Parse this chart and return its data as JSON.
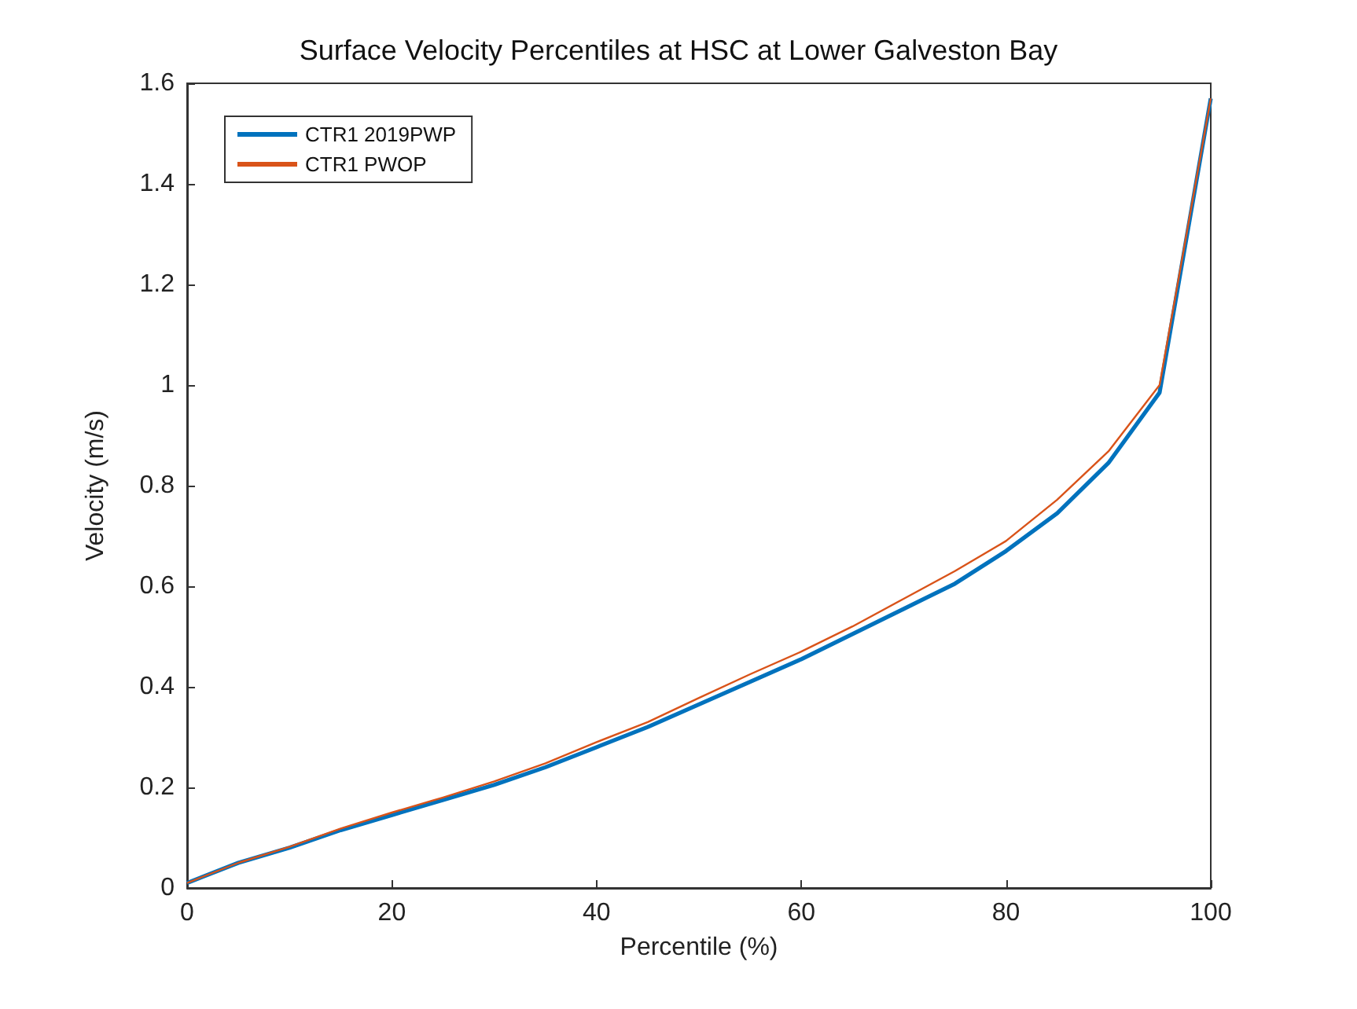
{
  "chart_data": {
    "type": "line",
    "title": "Surface Velocity Percentiles at HSC at Lower Galveston Bay",
    "xlabel": "Percentile (%)",
    "ylabel": "Velocity (m/s)",
    "x": [
      0,
      5,
      10,
      15,
      20,
      25,
      30,
      35,
      40,
      45,
      50,
      55,
      60,
      65,
      70,
      75,
      80,
      85,
      90,
      95,
      100
    ],
    "series": [
      {
        "name": "CTR1 2019PWP",
        "color": "#0072bd",
        "values": [
          0.01,
          0.05,
          0.08,
          0.115,
          0.145,
          0.175,
          0.205,
          0.24,
          0.28,
          0.32,
          0.365,
          0.41,
          0.455,
          0.505,
          0.555,
          0.605,
          0.67,
          0.745,
          0.845,
          0.985,
          1.57
        ]
      },
      {
        "name": "CTR1 PWOP",
        "color": "#d95319",
        "values": [
          0.01,
          0.05,
          0.082,
          0.118,
          0.15,
          0.18,
          0.212,
          0.248,
          0.29,
          0.33,
          0.378,
          0.425,
          0.47,
          0.52,
          0.575,
          0.63,
          0.69,
          0.772,
          0.868,
          1.0,
          1.57
        ]
      }
    ],
    "xlim": [
      0,
      100
    ],
    "xticks": [
      0,
      20,
      40,
      60,
      80,
      100
    ],
    "ylim": [
      0,
      1.6
    ],
    "yticks": [
      0,
      0.2,
      0.4,
      0.6,
      0.8,
      1,
      1.2,
      1.4,
      1.6
    ],
    "legend": "top left",
    "grid": false,
    "marker": "none",
    "line_style": "solid"
  }
}
